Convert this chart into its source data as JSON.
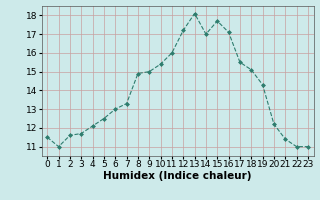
{
  "x": [
    0,
    1,
    2,
    3,
    4,
    5,
    6,
    7,
    8,
    9,
    10,
    11,
    12,
    13,
    14,
    15,
    16,
    17,
    18,
    19,
    20,
    21,
    22,
    23
  ],
  "y": [
    11.5,
    11.0,
    11.6,
    11.7,
    12.1,
    12.5,
    13.0,
    13.3,
    14.9,
    15.0,
    15.4,
    16.0,
    17.2,
    18.1,
    17.0,
    17.7,
    17.1,
    15.5,
    15.1,
    14.3,
    12.2,
    11.4,
    11.0,
    11.0
  ],
  "line_color": "#2e7d6e",
  "marker": "D",
  "marker_size": 2,
  "bg_color": "#cdeaea",
  "grid_color": "#b8b8b8",
  "grid_color_minor": "#d4a0a0",
  "xlabel": "Humidex (Indice chaleur)",
  "xlabel_fontsize": 7.5,
  "ylim": [
    10.5,
    18.5
  ],
  "xlim": [
    -0.5,
    23.5
  ],
  "yticks": [
    11,
    12,
    13,
    14,
    15,
    16,
    17,
    18
  ],
  "xticks": [
    0,
    1,
    2,
    3,
    4,
    5,
    6,
    7,
    8,
    9,
    10,
    11,
    12,
    13,
    14,
    15,
    16,
    17,
    18,
    19,
    20,
    21,
    22,
    23
  ],
  "tick_fontsize": 6.5
}
